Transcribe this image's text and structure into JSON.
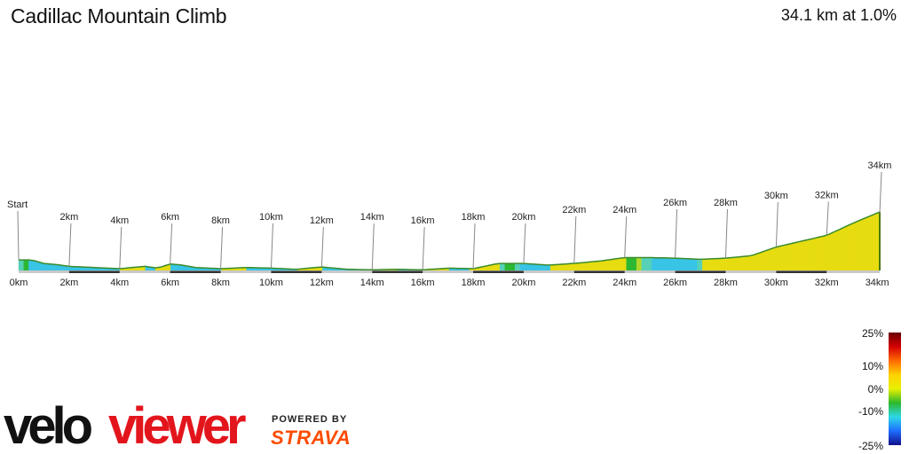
{
  "header": {
    "title": "Cadillac Mountain Climb",
    "summary": "34.1 km at 1.0%"
  },
  "chart_data": {
    "type": "area",
    "title": "Cadillac Mountain Climb",
    "distance_km": 34.1,
    "avg_gradient": "1.0%",
    "xlim": [
      0,
      34.1
    ],
    "x_ticks": [
      "0km",
      "2km",
      "4km",
      "6km",
      "8km",
      "10km",
      "12km",
      "14km",
      "16km",
      "18km",
      "20km",
      "22km",
      "24km",
      "26km",
      "28km",
      "30km",
      "32km",
      "34km"
    ],
    "markers": [
      "Start",
      "2km",
      "4km",
      "6km",
      "8km",
      "10km",
      "12km",
      "14km",
      "16km",
      "18km",
      "20km",
      "22km",
      "24km",
      "26km",
      "28km",
      "30km",
      "32km",
      "34km"
    ],
    "elevation_rel": [
      [
        0,
        0.18
      ],
      [
        0.5,
        0.18
      ],
      [
        1,
        0.12
      ],
      [
        1.5,
        0.1
      ],
      [
        2,
        0.07
      ],
      [
        3,
        0.05
      ],
      [
        4,
        0.03
      ],
      [
        5,
        0.07
      ],
      [
        5.5,
        0.04
      ],
      [
        6,
        0.11
      ],
      [
        6.5,
        0.09
      ],
      [
        7,
        0.05
      ],
      [
        8,
        0.03
      ],
      [
        9,
        0.05
      ],
      [
        10,
        0.04
      ],
      [
        11,
        0.02
      ],
      [
        12,
        0.06
      ],
      [
        13,
        0.02
      ],
      [
        14,
        0.01
      ],
      [
        15,
        0.02
      ],
      [
        16,
        0.01
      ],
      [
        17,
        0.04
      ],
      [
        18,
        0.03
      ],
      [
        19,
        0.12
      ],
      [
        20,
        0.12
      ],
      [
        21,
        0.09
      ],
      [
        22,
        0.12
      ],
      [
        23,
        0.16
      ],
      [
        24,
        0.22
      ],
      [
        25,
        0.22
      ],
      [
        26,
        0.21
      ],
      [
        27,
        0.19
      ],
      [
        28,
        0.21
      ],
      [
        29,
        0.25
      ],
      [
        30,
        0.4
      ],
      [
        31,
        0.5
      ],
      [
        32,
        0.6
      ],
      [
        33,
        0.8
      ],
      [
        34.1,
        1.0
      ]
    ],
    "gradient_scale": {
      "ticks": [
        "25%",
        "10%",
        "0%",
        "-10%",
        "-25%"
      ],
      "colors": [
        "#6b0000",
        "#d40000",
        "#ff6a00",
        "#ffd200",
        "#e8f000",
        "#2db82d",
        "#2dd8e8",
        "#1e6cff",
        "#10108a"
      ]
    }
  },
  "branding": {
    "logo_velo": "velo",
    "logo_viewer": "viewer",
    "powered_by": "POWERED BY",
    "strava": "STRAVA"
  }
}
